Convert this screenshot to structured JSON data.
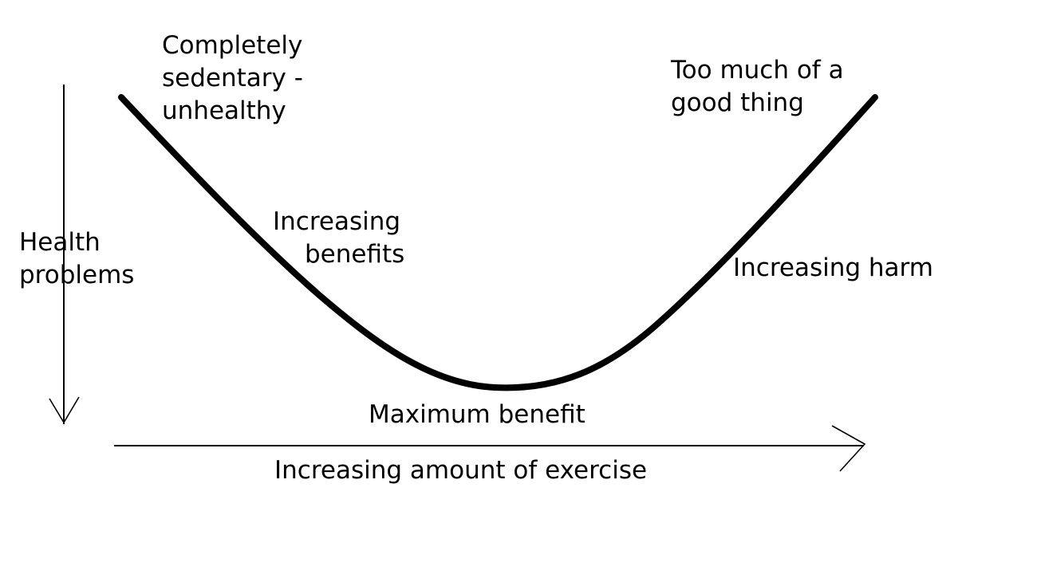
{
  "diagram": {
    "labels": {
      "sedentary": [
        "Completely",
        "sedentary -",
        "unhealthy"
      ],
      "too_much": [
        "Too much of a",
        "good thing"
      ],
      "increasing_benefits": [
        "Increasing",
        "benefits"
      ],
      "increasing_harm": "Increasing harm",
      "health_problems": [
        "Health",
        "problems"
      ],
      "maximum_benefit": "Maximum benefit",
      "x_axis": "Increasing amount of exercise"
    },
    "colors": {
      "ink": "#000000",
      "background": "#ffffff"
    }
  }
}
